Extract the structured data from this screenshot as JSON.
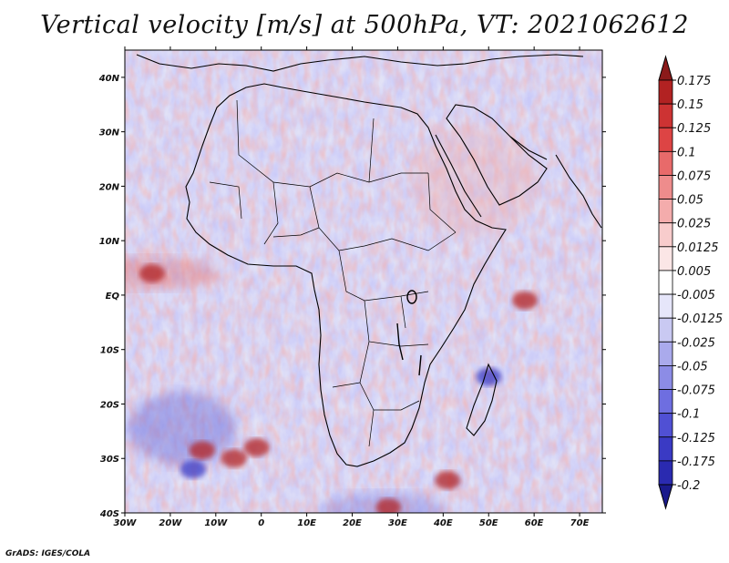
{
  "title": "Vertical velocity [m/s] at 500hPa, VT: 2021062612",
  "credit": "GrADS: IGES/COLA",
  "lat_labels": [
    "40N",
    "30N",
    "20N",
    "10N",
    "EQ",
    "10S",
    "20S",
    "30S",
    "40S"
  ],
  "lat_values": [
    40,
    30,
    20,
    10,
    0,
    -10,
    -20,
    -30,
    -40
  ],
  "lon_labels": [
    "30W",
    "20W",
    "10W",
    "0",
    "10E",
    "20E",
    "30E",
    "40E",
    "50E",
    "60E",
    "70E"
  ],
  "lon_values": [
    -30,
    -20,
    -10,
    0,
    10,
    20,
    30,
    40,
    50,
    60,
    70
  ],
  "map_extent": {
    "lon_min": -30,
    "lon_max": 75,
    "lat_min": -40,
    "lat_max": 45
  },
  "colorbar": {
    "levels": [
      "0.175",
      "0.15",
      "0.125",
      "0.1",
      "0.075",
      "0.05",
      "0.025",
      "0.0125",
      "0.005",
      "-0.005",
      "-0.0125",
      "-0.025",
      "-0.05",
      "-0.075",
      "-0.1",
      "-0.125",
      "-0.175",
      "-0.2"
    ],
    "colors": [
      "#8b1a1a",
      "#b22222",
      "#cd3333",
      "#dd4444",
      "#e86a6a",
      "#ee8c8c",
      "#f4acac",
      "#f8cccc",
      "#fbe6e6",
      "#ffffff",
      "#e6e6fa",
      "#c9c9f2",
      "#aaaaec",
      "#8c8ce6",
      "#6e6ee0",
      "#5050d4",
      "#3a3ac4",
      "#2a2ab0",
      "#1a1a8c"
    ]
  },
  "anomalies": [
    {
      "name": "cell-south-atlantic-strong",
      "lon": -6,
      "lat": -30,
      "sign": "positive"
    },
    {
      "name": "cell-south-atlantic-small",
      "lon": -13,
      "lat": -28.5,
      "sign": "positive"
    },
    {
      "name": "cell-south-atlantic-east",
      "lon": -1,
      "lat": -28,
      "sign": "positive"
    },
    {
      "name": "cell-indian-ocean-east",
      "lon": 58,
      "lat": -1,
      "sign": "positive"
    },
    {
      "name": "cell-south-of-madagascar",
      "lon": 41,
      "lat": -34,
      "sign": "positive"
    },
    {
      "name": "cell-itcz-atlantic",
      "lon": -24,
      "lat": 4,
      "sign": "positive"
    },
    {
      "name": "cell-south-africa-coast",
      "lon": 28,
      "lat": -39,
      "sign": "positive"
    },
    {
      "name": "cell-south-atlantic-swirl",
      "lon": -15,
      "lat": -32,
      "sign": "negative"
    },
    {
      "name": "cell-indian-ocean-sw",
      "lon": 50,
      "lat": -15,
      "sign": "negative"
    }
  ]
}
